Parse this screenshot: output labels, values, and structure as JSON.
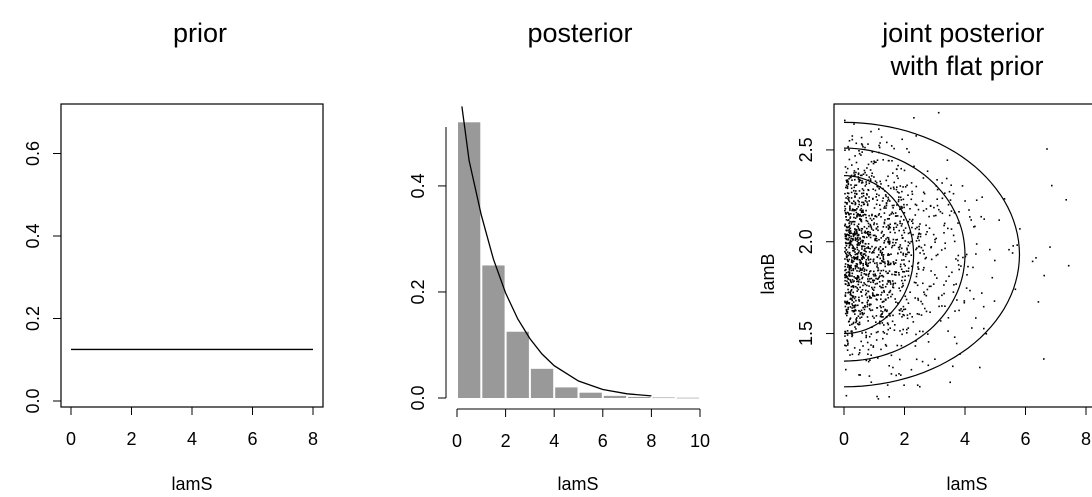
{
  "chart_data": [
    {
      "type": "line",
      "title": "prior",
      "xlabel": "lamS",
      "ylabel": "",
      "xlim": [
        0,
        8
      ],
      "ylim": [
        0,
        0.72
      ],
      "xticks": [
        0,
        2,
        4,
        6,
        8
      ],
      "yticks": [
        0.0,
        0.2,
        0.4,
        0.6
      ],
      "xtick_labels": [
        "0",
        "2",
        "4",
        "6",
        "8"
      ],
      "ytick_labels": [
        "0.0",
        "0.2",
        "0.4",
        "0.6"
      ],
      "series": [
        {
          "x": [
            0,
            8
          ],
          "y": [
            0.125,
            0.125
          ]
        }
      ]
    },
    {
      "type": "bar",
      "title": "posterior",
      "xlabel": "lamS",
      "ylabel": "",
      "xlim": [
        0,
        10
      ],
      "ylim": [
        0,
        0.53
      ],
      "xticks": [
        0,
        2,
        4,
        6,
        8,
        10
      ],
      "yticks": [
        0.0,
        0.2,
        0.4
      ],
      "xtick_labels": [
        "0",
        "2",
        "4",
        "6",
        "8",
        "10"
      ],
      "ytick_labels": [
        "0.0",
        "0.2",
        "0.4"
      ],
      "bins": [
        {
          "x0": 0,
          "x1": 1,
          "value": 0.52
        },
        {
          "x0": 1,
          "x1": 2,
          "value": 0.25
        },
        {
          "x0": 2,
          "x1": 3,
          "value": 0.125
        },
        {
          "x0": 3,
          "x1": 4,
          "value": 0.055
        },
        {
          "x0": 4,
          "x1": 5,
          "value": 0.02
        },
        {
          "x0": 5,
          "x1": 6,
          "value": 0.01
        },
        {
          "x0": 6,
          "x1": 7,
          "value": 0.004
        },
        {
          "x0": 7,
          "x1": 8,
          "value": 0.002
        },
        {
          "x0": 8,
          "x1": 9,
          "value": 0.001
        },
        {
          "x0": 9,
          "x1": 10,
          "value": 0.0005
        }
      ],
      "bar_color": "#999999",
      "density_curve": {
        "x": [
          0.2,
          0.5,
          1.0,
          1.5,
          2.0,
          2.5,
          3.0,
          3.5,
          4.0,
          5.0,
          6.0,
          7.0,
          8.0
        ],
        "y": [
          0.55,
          0.448,
          0.345,
          0.262,
          0.198,
          0.149,
          0.112,
          0.083,
          0.061,
          0.032,
          0.016,
          0.008,
          0.004
        ]
      }
    },
    {
      "type": "scatter",
      "title": "joint posterior\nwith flat prior",
      "xlabel": "lamS",
      "ylabel": "lamB",
      "xlim": [
        0,
        8
      ],
      "ylim": [
        1.1,
        2.75
      ],
      "xticks": [
        0,
        2,
        4,
        6,
        8
      ],
      "yticks": [
        1.5,
        2.0,
        2.5
      ],
      "xtick_labels": [
        "0",
        "2",
        "4",
        "6",
        "8"
      ],
      "ytick_labels": [
        "1.5",
        "2.0",
        "2.5"
      ],
      "point_count": 1500,
      "contours": [
        {
          "center": [
            0,
            1.93
          ],
          "x_extent": 2.3,
          "y_halfwidth": 0.43
        },
        {
          "center": [
            0,
            1.93
          ],
          "x_extent": 4.0,
          "y_halfwidth": 0.58
        },
        {
          "center": [
            0,
            1.93
          ],
          "x_extent": 5.8,
          "y_halfwidth": 0.72
        }
      ]
    }
  ]
}
